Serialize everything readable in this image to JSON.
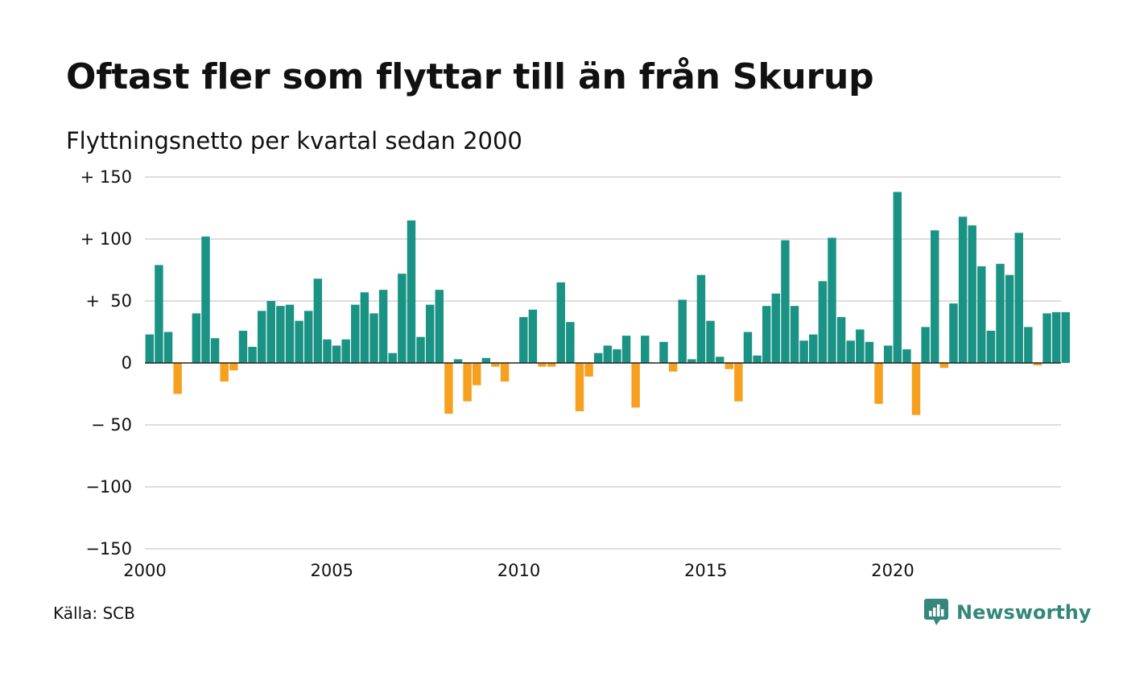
{
  "title": "Oftast fler som flyttar till än från Skurup",
  "subtitle": "Flyttningsnetto per kvartal sedan 2000",
  "source": "Källa: SCB",
  "brand": {
    "name": "Newsworthy",
    "icon": "newsworthy-logo-icon"
  },
  "colors": {
    "positive": "#1a9385",
    "negative": "#f7a01f",
    "grid": "#dddddd",
    "zero_line": "#222222",
    "brand": "#33877b"
  },
  "chart_data": {
    "type": "bar",
    "title": "Oftast fler som flyttar till än från Skurup",
    "subtitle": "Flyttningsnetto per kvartal sedan 2000",
    "xlabel": "",
    "ylabel": "",
    "ylim": [
      -150,
      150
    ],
    "xlim": [
      2000,
      2024.5
    ],
    "grid": true,
    "y_ticks": [
      {
        "value": 150,
        "label": "+ 150"
      },
      {
        "value": 100,
        "label": "+ 100"
      },
      {
        "value": 50,
        "label": "+  50"
      },
      {
        "value": 0,
        "label": "0"
      },
      {
        "value": -50,
        "label": "− 50"
      },
      {
        "value": -100,
        "label": "−100"
      },
      {
        "value": -150,
        "label": "−150"
      }
    ],
    "x_ticks": [
      {
        "value": 2000,
        "label": "2000"
      },
      {
        "value": 2005,
        "label": "2005"
      },
      {
        "value": 2010,
        "label": "2010"
      },
      {
        "value": 2015,
        "label": "2015"
      },
      {
        "value": 2020,
        "label": "2020"
      }
    ],
    "quarter_start_year": 2000,
    "values": [
      23,
      79,
      25,
      -25,
      0,
      40,
      102,
      20,
      -15,
      -6,
      26,
      13,
      42,
      50,
      46,
      47,
      34,
      42,
      68,
      19,
      14,
      19,
      47,
      57,
      40,
      59,
      8,
      72,
      115,
      21,
      47,
      59,
      -41,
      3,
      -31,
      -18,
      4,
      -3,
      -15,
      0,
      37,
      43,
      -3,
      -3,
      65,
      33,
      -39,
      -11,
      8,
      14,
      11,
      22,
      -36,
      22,
      0,
      17,
      -7,
      51,
      3,
      71,
      34,
      5,
      -5,
      -31,
      25,
      6,
      46,
      56,
      99,
      46,
      18,
      23,
      66,
      101,
      37,
      18,
      27,
      17,
      -33,
      14,
      138,
      11,
      -42,
      29,
      107,
      -4,
      48,
      118,
      111,
      78,
      26,
      80,
      71,
      105,
      29,
      -2,
      40,
      41,
      41
    ]
  }
}
